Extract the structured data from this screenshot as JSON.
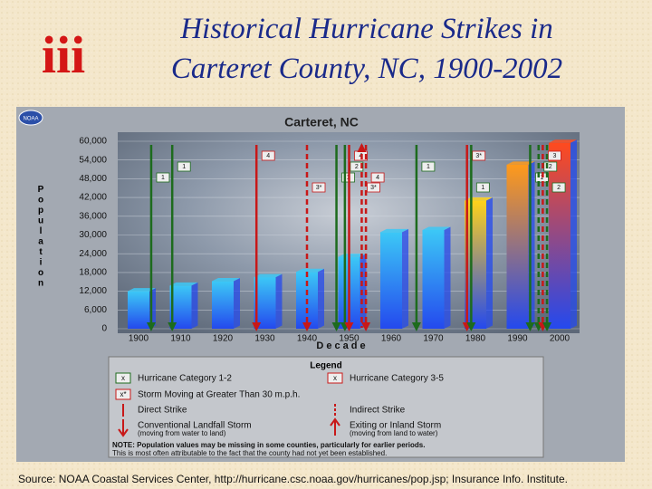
{
  "slide": {
    "logo": "iii",
    "title_lines": [
      "Historical Hurricane Strikes in",
      "Carteret County, NC, 1900-2002"
    ],
    "source": "Source: NOAA Coastal Services Center, http://hurricane.csc.noaa.gov/hurricanes/pop.jsp; Insurance Info. Institute."
  },
  "chart_data": {
    "type": "bar",
    "badge": "NOAA",
    "title": "Carteret, NC",
    "y_label": "Population",
    "x_label": "Decade",
    "categories": [
      "1900",
      "1910",
      "1920",
      "1930",
      "1940",
      "1950",
      "1960",
      "1970",
      "1980",
      "1990",
      "2000"
    ],
    "values": [
      12000,
      13800,
      15200,
      16500,
      18200,
      23000,
      30900,
      31600,
      41000,
      52500,
      59500
    ],
    "colors": [
      "#3cc8f6",
      "#3cc8f6",
      "#3cc8f6",
      "#3cc8f6",
      "#3cc8f6",
      "#3cc8f6",
      "#3cc8f6",
      "#3cc8f6",
      "#ffd21a",
      "#ff9a1a",
      "#ff4a1e"
    ],
    "base_color": "#2449ee",
    "ylim": [
      0,
      60000
    ],
    "yticks": [
      0,
      {
        "value": 6000,
        "label": "6,000"
      },
      {
        "value": 12000,
        "label": "12,000"
      },
      {
        "value": 18000,
        "label": "18,000"
      },
      {
        "value": 24000,
        "label": "24,000"
      },
      {
        "value": 30000,
        "label": "30,000"
      },
      {
        "value": 36000,
        "label": "36,000"
      },
      {
        "value": 42000,
        "label": "42,000"
      },
      {
        "value": 48000,
        "label": "48,000"
      },
      {
        "value": 54000,
        "label": "54,000"
      },
      {
        "value": 60000,
        "label": "60,000"
      }
    ],
    "strikes": [
      {
        "year": 1903,
        "label": "1",
        "color": "#1d6b1d",
        "dashed": false,
        "arrow": "down"
      },
      {
        "year": 1908,
        "label": "1",
        "color": "#1d6b1d",
        "dashed": false,
        "arrow": "down"
      },
      {
        "year": 1928,
        "label": "4",
        "color": "#c81818",
        "dashed": false,
        "arrow": "down"
      },
      {
        "year": 1940,
        "label": "3*",
        "color": "#c81818",
        "dashed": true,
        "arrow": "down"
      },
      {
        "year": 1947,
        "label": "1",
        "color": "#1d6b1d",
        "dashed": false,
        "arrow": "down"
      },
      {
        "year": 1949,
        "label": "2",
        "color": "#1d6b1d",
        "dashed": false,
        "arrow": "down"
      },
      {
        "year": 1950,
        "label": "4",
        "color": "#c81818",
        "dashed": false,
        "arrow": "down"
      },
      {
        "year": 1953,
        "label": "3*",
        "color": "#c81818",
        "dashed": true,
        "arrow": "up"
      },
      {
        "year": 1954,
        "label": "4",
        "color": "#c81818",
        "dashed": true,
        "arrow": "down"
      },
      {
        "year": 1966,
        "label": "1",
        "color": "#1d6b1d",
        "dashed": false,
        "arrow": "down"
      },
      {
        "year": 1978,
        "label": "3*",
        "color": "#c81818",
        "dashed": false,
        "arrow": "down"
      },
      {
        "year": 1979,
        "label": "1",
        "color": "#1d6b1d",
        "dashed": false,
        "arrow": "down"
      },
      {
        "year": 1993,
        "label": "1",
        "color": "#1d6b1d",
        "dashed": false,
        "arrow": "down"
      },
      {
        "year": 1995,
        "label": "2",
        "color": "#1d6b1d",
        "dashed": true,
        "arrow": "down"
      },
      {
        "year": 1996,
        "label": "3",
        "color": "#c81818",
        "dashed": true,
        "arrow": "down"
      },
      {
        "year": 1997,
        "label": "2",
        "color": "#1d6b1d",
        "dashed": true,
        "arrow": "down"
      }
    ],
    "legend": {
      "title": "Legend",
      "cat12": "Hurricane Category 1-2",
      "cat35": "Hurricane Category 3-5",
      "fast": "Storm Moving at Greater Than 30 m.p.h.",
      "direct": "Direct Strike",
      "indirect": "Indirect Strike",
      "landfall": "Conventional Landfall Storm",
      "landfall_sub": "(moving from water to land)",
      "exiting": "Exiting or Inland Storm",
      "exiting_sub": "(moving from land to water)",
      "box": "x",
      "box_fast": "x*"
    },
    "note": [
      "NOTE: Population values may be missing in some counties, particularly for earlier periods.",
      "This is most often attributable to the fact that the county had not yet been established."
    ]
  }
}
